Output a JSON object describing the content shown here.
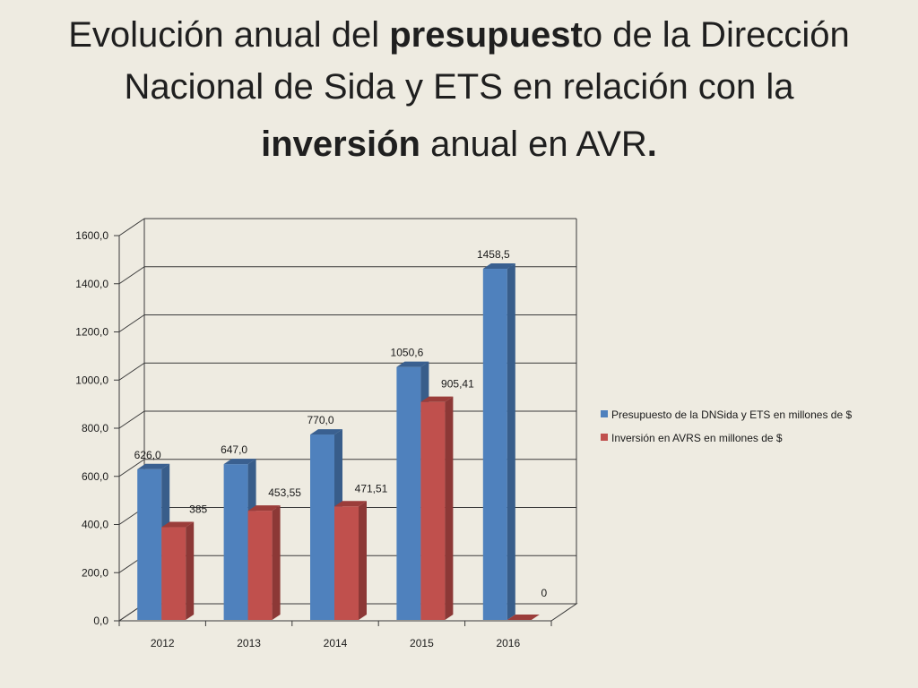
{
  "title": {
    "line1_a": "Evolución anual del ",
    "line1_b": "presupuest",
    "line1_c": "o de la Dirección",
    "line2": "Nacional de Sida y ETS en relación con la",
    "line3_a": "inversión",
    "line3_b": " anual en AVR",
    "line3_c": "."
  },
  "chart_data": {
    "type": "bar",
    "categories": [
      "2012",
      "2013",
      "2014",
      "2015",
      "2016"
    ],
    "series": [
      {
        "name": "Presupuesto de la DNSida y ETS en millones de $",
        "values": [
          626.0,
          647.0,
          770.0,
          1050.6,
          1458.5
        ],
        "labels": [
          "626,0",
          "647,0",
          "770,0",
          "1050,6",
          "1458,5"
        ],
        "color": "#4f81bd",
        "side_color": "#385d8a",
        "top_color": "#3a6090"
      },
      {
        "name": "Inversión en AVRS en millones de $",
        "values": [
          385,
          453.55,
          471.51,
          905.41,
          0
        ],
        "labels": [
          "385",
          "453,55",
          "471,51",
          "905,41",
          "0"
        ],
        "color": "#c0504d",
        "side_color": "#8c3836",
        "top_color": "#9b3d3a"
      }
    ],
    "yticks": [
      "0,0",
      "200,0",
      "400,0",
      "600,0",
      "800,0",
      "1000,0",
      "1200,0",
      "1400,0",
      "1600,0"
    ],
    "ylim": [
      0,
      1600
    ],
    "grid": true,
    "legend_position": "right",
    "bar_style": "3d-clustered-column"
  }
}
